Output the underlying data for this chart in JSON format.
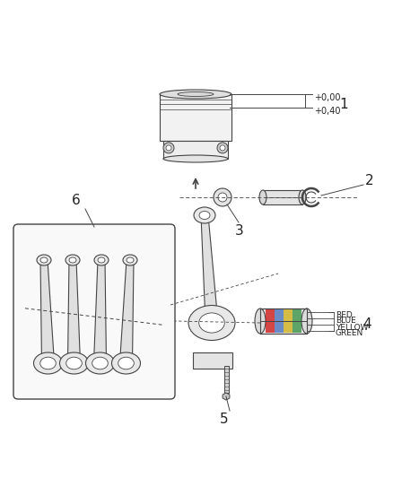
{
  "bg_color": "#ffffff",
  "line_color": "#444444",
  "text_color": "#222222",
  "label1": "1",
  "label2": "2",
  "label3": "3",
  "label4": "4",
  "label5": "5",
  "label6": "6",
  "ann1": [
    "+0,00",
    "+0,40"
  ],
  "ann4": [
    "RED",
    "BLUE",
    "YELLOW",
    "GREEN"
  ],
  "figw": 4.38,
  "figh": 5.33,
  "dpi": 100
}
